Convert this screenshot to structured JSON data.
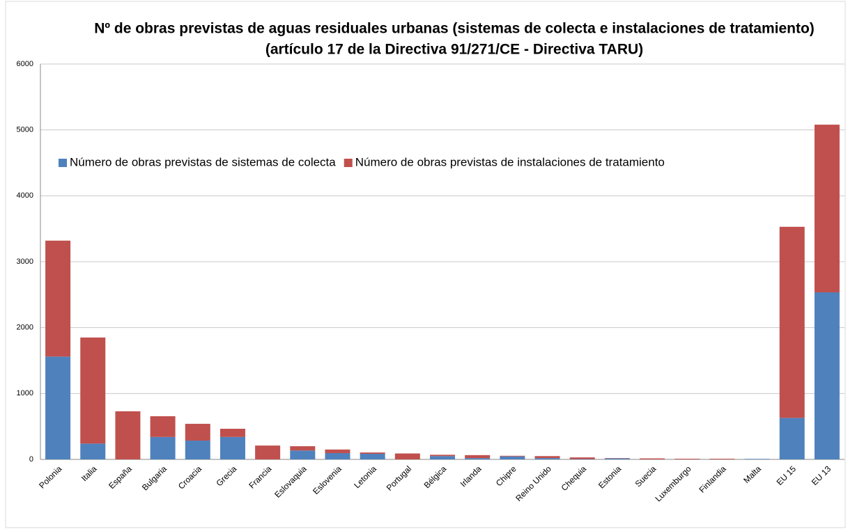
{
  "chart_data": {
    "type": "bar",
    "stacked": true,
    "title": "Nº de obras previstas de aguas residuales urbanas (sistemas de colecta e instalaciones de tratamiento)",
    "subtitle": "(artículo 17 de la Directiva 91/271/CE - Directiva TARU)",
    "categories": [
      "Polonia",
      "Italia",
      "España",
      "Bulgaria",
      "Croacia",
      "Grecia",
      "Francia",
      "Eslovaquia",
      "Eslovenia",
      "Letonia",
      "Portugal",
      "Bélgica",
      "Irlanda",
      "Chipre",
      "Reino Unido",
      "Chequia",
      "Estonia",
      "Suecia",
      "Luxemburgo",
      "Finlandia",
      "Malta",
      "EU 15",
      "EU 13"
    ],
    "series": [
      {
        "name": "Número de obras previstas de sistemas de colecta",
        "color": "#4f81bd",
        "values": [
          1560,
          240,
          0,
          340,
          285,
          340,
          0,
          135,
          95,
          85,
          0,
          50,
          20,
          45,
          20,
          5,
          15,
          0,
          0,
          0,
          8,
          630,
          2535
        ]
      },
      {
        "name": "Número de obras previstas de instalaciones de tratamiento",
        "color": "#c0504d",
        "values": [
          1760,
          1610,
          730,
          315,
          255,
          125,
          210,
          65,
          55,
          20,
          90,
          20,
          45,
          10,
          30,
          25,
          5,
          15,
          10,
          10,
          0,
          2900,
          2545
        ]
      }
    ],
    "ylim": [
      0,
      6000
    ],
    "yticks": [
      0,
      1000,
      2000,
      3000,
      4000,
      5000,
      6000
    ],
    "grid": true,
    "legend": "top-left"
  }
}
